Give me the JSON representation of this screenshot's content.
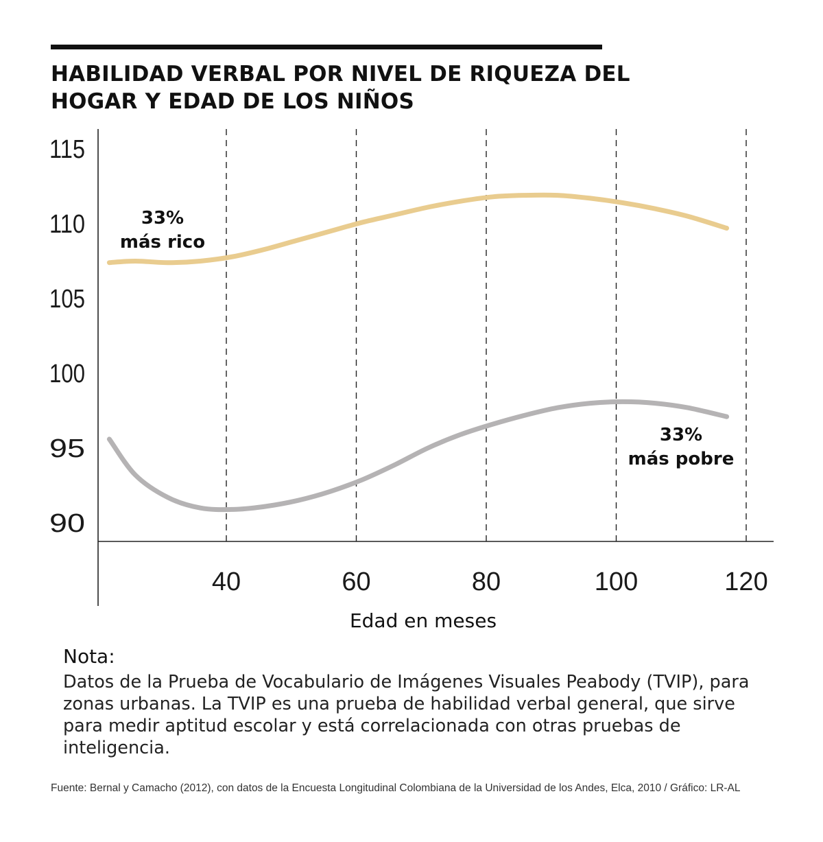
{
  "title": "HABILIDAD VERBAL POR NIVEL DE RIQUEZA DEL HOGAR Y EDAD DE LOS NIÑOS",
  "chart_data": {
    "type": "line",
    "title": "HABILIDAD VERBAL POR NIVEL DE RIQUEZA DEL HOGAR Y EDAD DE LOS NIÑOS",
    "xlabel": "Edad en meses",
    "ylabel": "",
    "xlim": [
      21,
      124
    ],
    "ylim": [
      89,
      116
    ],
    "x_ticks": [
      40,
      60,
      80,
      100,
      120
    ],
    "y_ticks": [
      90,
      95,
      100,
      105,
      110,
      115
    ],
    "grid": "vertical dashed",
    "series": [
      {
        "name": "33%\nmás rico",
        "label_lines": [
          "33%",
          "más rico"
        ],
        "color": "#e9cc8f",
        "x": [
          22,
          26,
          31,
          36,
          41,
          46,
          51,
          56,
          61,
          66,
          71,
          76,
          81,
          86,
          91,
          96,
          101,
          106,
          111,
          117
        ],
        "y": [
          107.4,
          107.5,
          107.4,
          107.5,
          107.8,
          108.3,
          108.9,
          109.5,
          110.1,
          110.6,
          111.1,
          111.5,
          111.8,
          111.9,
          111.9,
          111.7,
          111.4,
          111.0,
          110.5,
          109.7
        ]
      },
      {
        "name": "33%\nmás pobre",
        "label_lines": [
          "33%",
          "más pobre"
        ],
        "color": "#b5b3b4",
        "x": [
          22,
          26,
          31,
          36,
          41,
          46,
          51,
          56,
          61,
          66,
          71,
          76,
          81,
          86,
          91,
          96,
          101,
          106,
          111,
          117
        ],
        "y": [
          95.6,
          93.2,
          91.7,
          91.0,
          90.9,
          91.1,
          91.5,
          92.1,
          92.9,
          93.9,
          95.0,
          95.9,
          96.6,
          97.2,
          97.7,
          98.0,
          98.1,
          98.0,
          97.7,
          97.1
        ]
      }
    ]
  },
  "note": {
    "heading": "Nota:",
    "text": "Datos de la Prueba de Vocabulario de Imágenes Visuales Peabody (TVIP), para zonas urbanas. La TVIP es una prueba de habilidad verbal general, que sirve para medir aptitud escolar y está correlacionada con otras pruebas de inteligencia."
  },
  "source": "Fuente: Bernal y Camacho (2012), con datos de la Encuesta Longitudinal Colombiana de la Universidad de los Andes, Elca, 2010 / Gráfico: LR-AL"
}
